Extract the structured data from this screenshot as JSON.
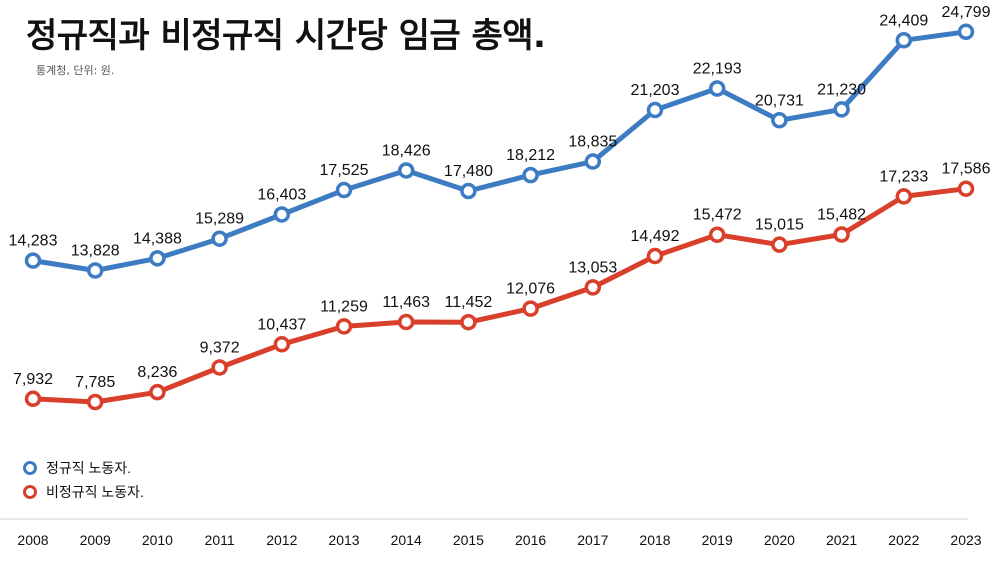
{
  "title": "정규직과 비정규직 시간당 임금 총액.",
  "subtitle": "통계청, 단위: 원.",
  "chart_data": {
    "type": "line",
    "title": "정규직과 비정규직 시간당 임금 총액.",
    "subtitle": "통계청, 단위: 원.",
    "xlabel": "",
    "ylabel": "",
    "grid": false,
    "legend_position": "bottom-left",
    "x": [
      "2008",
      "2009",
      "2010",
      "2011",
      "2012",
      "2013",
      "2014",
      "2015",
      "2016",
      "2017",
      "2018",
      "2019",
      "2020",
      "2021",
      "2022",
      "2023"
    ],
    "series": [
      {
        "name": "정규직 노동자.",
        "color": "#3d7cc2",
        "values": [
          14283,
          13828,
          14388,
          15289,
          16403,
          17525,
          18426,
          17480,
          18212,
          18835,
          21203,
          22193,
          20731,
          21230,
          24409,
          24799
        ],
        "labels": [
          "14,283",
          "13,828",
          "14,388",
          "15,289",
          "16,403",
          "17,525",
          "18,426",
          "17,480",
          "18,212",
          "18,835",
          "21,203",
          "22,193",
          "20,731",
          "21,230",
          "24,409",
          "24,799"
        ]
      },
      {
        "name": "비정규직 노동자.",
        "color": "#d9402b",
        "values": [
          7932,
          7785,
          8236,
          9372,
          10437,
          11259,
          11463,
          11452,
          12076,
          13053,
          14492,
          15472,
          15015,
          15482,
          17233,
          17586
        ],
        "labels": [
          "7,932",
          "7,785",
          "8,236",
          "9,372",
          "10,437",
          "11,259",
          "11,463",
          "11,452",
          "12,076",
          "13,053",
          "14,492",
          "15,472",
          "15,015",
          "15,482",
          "17,233",
          "17,586"
        ]
      }
    ]
  }
}
